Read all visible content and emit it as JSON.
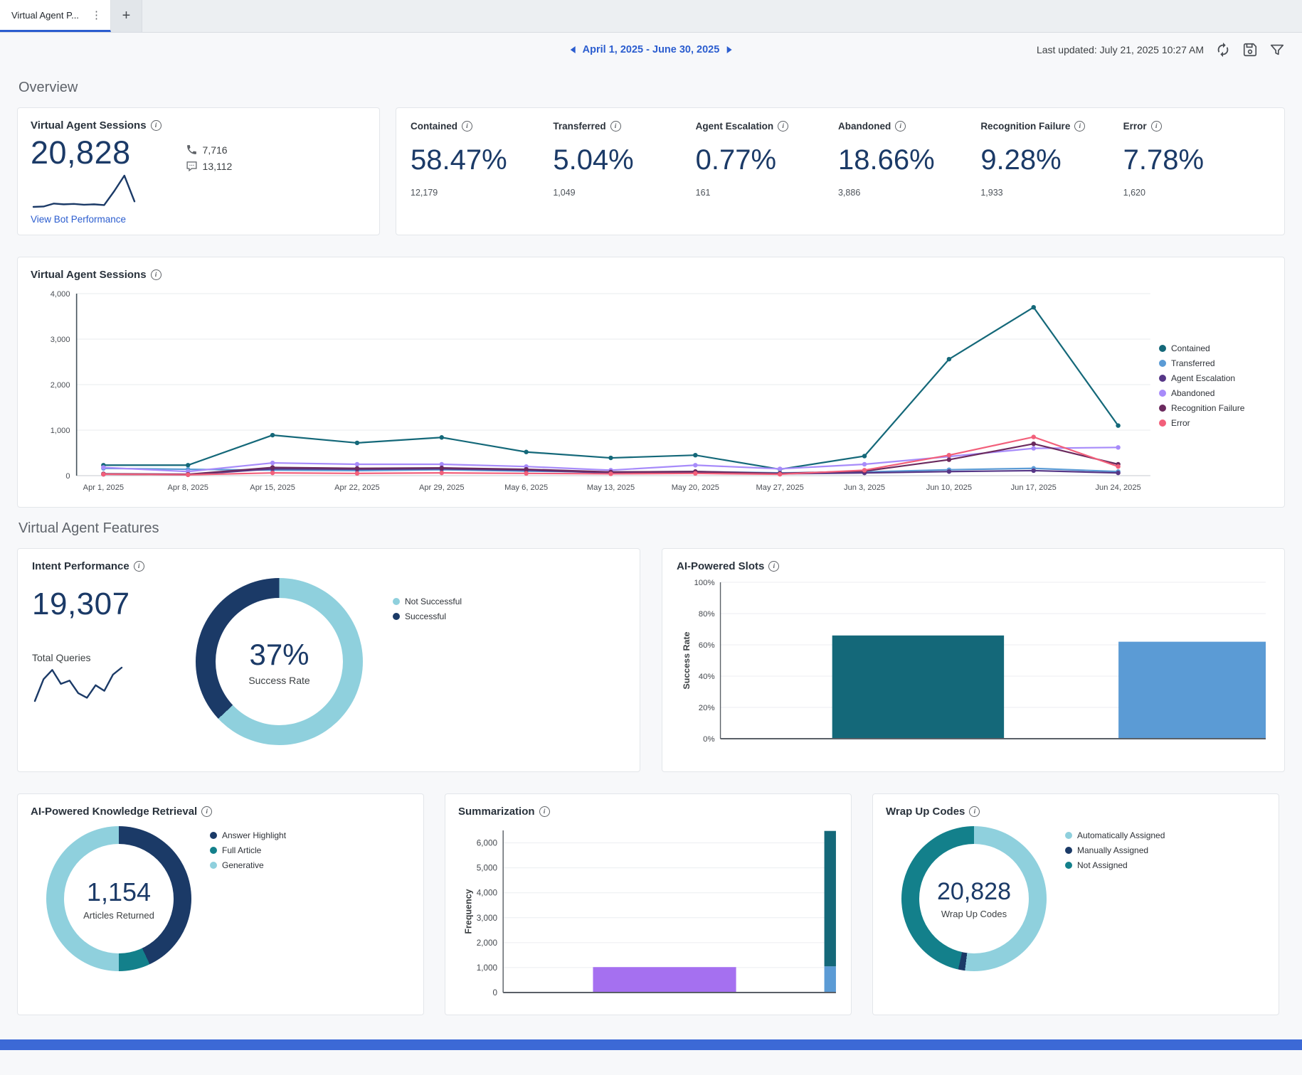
{
  "tab_bar": {
    "active_tab_label": "Virtual Agent P...",
    "new_tab_label": "+"
  },
  "header": {
    "date_range": "April 1, 2025 - June 30, 2025",
    "last_updated": "Last updated: July 21, 2025 10:27 AM"
  },
  "overview": {
    "heading": "Overview",
    "sessions_card": {
      "title": "Virtual Agent Sessions",
      "total": "20,828",
      "voice_count": "7,716",
      "chat_count": "13,112",
      "link_label": "View Bot Performance",
      "sparkline": [
        15,
        16,
        24,
        22,
        23,
        21,
        22,
        20,
        58,
        100,
        30
      ]
    },
    "kpis": [
      {
        "label": "Contained",
        "pct": "58.47%",
        "count": "12,179"
      },
      {
        "label": "Transferred",
        "pct": "5.04%",
        "count": "1,049"
      },
      {
        "label": "Agent Escalation",
        "pct": "0.77%",
        "count": "161"
      },
      {
        "label": "Abandoned",
        "pct": "18.66%",
        "count": "3,886"
      },
      {
        "label": "Recognition Failure",
        "pct": "9.28%",
        "count": "1,933"
      },
      {
        "label": "Error",
        "pct": "7.78%",
        "count": "1,620"
      }
    ]
  },
  "features": {
    "heading": "Virtual Agent Features",
    "intent": {
      "total_queries_value": "19,307",
      "total_queries_label": "Total Queries",
      "sparkline": [
        8,
        55,
        75,
        45,
        52,
        25,
        15,
        42,
        30,
        65,
        80
      ]
    }
  },
  "colors": {
    "accent_blue": "#2b5dcf",
    "navy": "#1b3a67",
    "teal": "#146879",
    "blue": "#5b9bd5",
    "light_cyan": "#8fd0dd",
    "purple": "#a570f0",
    "bottom_strip": "#3c69d6"
  },
  "chart_data": [
    {
      "id": "sessions_trend",
      "type": "line",
      "title": "Virtual Agent Sessions",
      "x": [
        "Apr 1, 2025",
        "Apr 8, 2025",
        "Apr 15, 2025",
        "Apr 22, 2025",
        "Apr 29, 2025",
        "May 6, 2025",
        "May 13, 2025",
        "May 20, 2025",
        "May 27, 2025",
        "Jun 3, 2025",
        "Jun 10, 2025",
        "Jun 17, 2025",
        "Jun 24, 2025"
      ],
      "ylim": [
        0,
        4000
      ],
      "yticks": [
        0,
        1000,
        2000,
        3000,
        4000
      ],
      "legend_position": "right",
      "grid": true,
      "series": [
        {
          "name": "Contained",
          "color": "#146879",
          "values": [
            230,
            230,
            890,
            720,
            840,
            520,
            390,
            450,
            140,
            430,
            2560,
            3700,
            1100
          ]
        },
        {
          "name": "Transferred",
          "color": "#5b9bd5",
          "values": [
            160,
            140,
            120,
            110,
            130,
            100,
            80,
            90,
            60,
            80,
            130,
            160,
            90
          ]
        },
        {
          "name": "Agent Escalation",
          "color": "#563787",
          "values": [
            30,
            20,
            150,
            140,
            150,
            120,
            60,
            70,
            40,
            60,
            90,
            110,
            60
          ]
        },
        {
          "name": "Abandoned",
          "color": "#a78bfa",
          "values": [
            180,
            90,
            280,
            250,
            250,
            200,
            120,
            230,
            150,
            250,
            420,
            600,
            620
          ]
        },
        {
          "name": "Recognition Failure",
          "color": "#6b2a5e",
          "values": [
            40,
            30,
            180,
            160,
            170,
            140,
            80,
            90,
            50,
            100,
            350,
            700,
            250
          ]
        },
        {
          "name": "Error",
          "color": "#f25f7a",
          "values": [
            30,
            20,
            60,
            50,
            60,
            50,
            40,
            50,
            30,
            120,
            450,
            850,
            200
          ]
        }
      ]
    },
    {
      "id": "intent_donut",
      "type": "pie",
      "title": "Intent Performance",
      "center_value": "37%",
      "center_label": "Success Rate",
      "slices": [
        {
          "name": "Not Successful",
          "value": 63,
          "color": "#8fd0dd"
        },
        {
          "name": "Successful",
          "value": 37,
          "color": "#1b3a67"
        }
      ]
    },
    {
      "id": "slots_bars",
      "type": "bar",
      "title": "AI-Powered Slots",
      "ylabel": "Success Rate",
      "ylim": [
        0,
        100
      ],
      "yticks": [
        0,
        20,
        40,
        60,
        80,
        100
      ],
      "tick_suffix": "%",
      "bars": [
        {
          "x0": 0.205,
          "x1": 0.52,
          "stack": [
            {
              "value": 66,
              "color": "#146879"
            }
          ]
        },
        {
          "x0": 0.73,
          "x1": 1.0,
          "stack": [
            {
              "value": 62,
              "color": "#5b9bd5"
            }
          ]
        }
      ]
    },
    {
      "id": "knowledge_donut",
      "type": "pie",
      "title": "AI-Powered Knowledge Retrieval",
      "center_value": "1,154",
      "center_label": "Articles Returned",
      "slices": [
        {
          "name": "Answer Highlight",
          "value": 43,
          "color": "#1b3a67"
        },
        {
          "name": "Full Article",
          "value": 7,
          "color": "#13808b"
        },
        {
          "name": "Generative",
          "value": 50,
          "color": "#8fd0dd"
        }
      ]
    },
    {
      "id": "summarization_bars",
      "type": "bar",
      "title": "Summarization",
      "ylabel": "Frequency",
      "ylim": [
        0,
        6500
      ],
      "yticks": [
        0,
        1000,
        2000,
        3000,
        4000,
        5000,
        6000
      ],
      "bars": [
        {
          "x0": 0.27,
          "x1": 0.7,
          "stack": [
            {
              "value": 1020,
              "color": "#a570f0"
            }
          ]
        },
        {
          "x0": 0.965,
          "x1": 1.0,
          "stack": [
            {
              "value": 1050,
              "color": "#5b9bd5"
            },
            {
              "value": 5430,
              "color": "#146879"
            }
          ]
        }
      ]
    },
    {
      "id": "wrapup_donut",
      "type": "pie",
      "title": "Wrap Up Codes",
      "center_value": "20,828",
      "center_label": "Wrap Up Codes",
      "slices": [
        {
          "name": "Automatically Assigned",
          "value": 52,
          "color": "#8fd0dd"
        },
        {
          "name": "Manually Assigned",
          "value": 1.5,
          "color": "#1b3a67"
        },
        {
          "name": "Not Assigned",
          "value": 46.5,
          "color": "#13808b"
        }
      ]
    }
  ]
}
